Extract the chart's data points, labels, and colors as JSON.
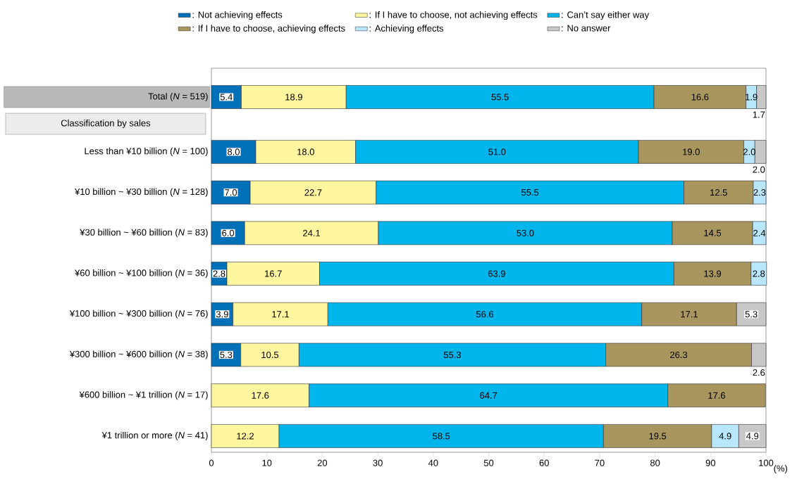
{
  "chart_data": {
    "type": "bar",
    "orientation": "horizontal",
    "stacked": true,
    "categories": [
      "Total (*N* = 519)",
      "Less than ¥10 billion (*N* = 100)",
      "¥10 billion ~ ¥30 billion (*N* = 128)",
      "¥30 billion ~ ¥60 billion (*N* = 83)",
      "¥60 billion ~ ¥100 billion (*N* = 36)",
      "¥100 billion ~ ¥300 billion (*N* = 76)",
      "¥300 billion ~ ¥600 billion (*N* = 38)",
      "¥600 billion ~ ¥1 trillion (*N* = 17)",
      "¥1 trillion or more (*N* = 41)"
    ],
    "series": [
      {
        "name": ": Not achieving effects",
        "color": "#0070b8",
        "values": [
          5.4,
          8.0,
          7.0,
          6.0,
          2.8,
          3.9,
          5.3,
          null,
          null
        ],
        "value_labels": [
          "5.4",
          "8.0",
          "7.0",
          "6.0",
          "2.8",
          "3.9",
          "5.3",
          null,
          null
        ]
      },
      {
        "name": ": If I have to choose, not achieving effects",
        "color": "#fff6a0",
        "values": [
          18.9,
          18.0,
          22.7,
          24.1,
          16.7,
          17.1,
          10.5,
          17.6,
          12.2
        ],
        "value_labels": [
          "18.9",
          "18.0",
          "22.7",
          "24.1",
          "16.7",
          "17.1",
          "10.5",
          "17.6",
          "12.2"
        ]
      },
      {
        "name": ": Can’t say either way",
        "color": "#00b5ec",
        "values": [
          55.5,
          51.0,
          55.5,
          53.0,
          63.9,
          56.6,
          55.3,
          64.7,
          58.5
        ],
        "value_labels": [
          "55.5",
          "51.0",
          "55.5",
          "53.0",
          "63.9",
          "56.6",
          "55.3",
          "64.7",
          "58.5"
        ]
      },
      {
        "name": ": If I have to choose, achieving effects",
        "color": "#a8965e",
        "values": [
          16.6,
          19.0,
          12.5,
          14.5,
          13.9,
          17.1,
          26.3,
          17.6,
          19.5
        ],
        "value_labels": [
          "16.6",
          "19.0",
          "12.5",
          "14.5",
          "13.9",
          "17.1",
          "26.3",
          "17.6",
          "19.5"
        ]
      },
      {
        "name": ": Achieving effects",
        "color": "#b8e6fa",
        "values": [
          1.9,
          2.0,
          2.3,
          2.4,
          2.8,
          null,
          null,
          null,
          4.9
        ],
        "value_labels": [
          "1.9",
          "2.0",
          "2.3",
          "2.4",
          "2.8",
          null,
          null,
          null,
          "4.9"
        ]
      },
      {
        "name": ": No answer",
        "color": "#c8c8c8",
        "values": [
          1.7,
          2.0,
          null,
          null,
          null,
          5.3,
          2.6,
          null,
          4.9
        ],
        "value_labels": [
          "1.7",
          "2.0",
          null,
          null,
          null,
          "5.3",
          "2.6",
          null,
          "4.9"
        ]
      }
    ],
    "xlim": [
      0,
      100
    ],
    "xticks": [
      0,
      10,
      20,
      30,
      40,
      50,
      60,
      70,
      80,
      90,
      100
    ],
    "xlabel": "(%)",
    "annotations": [
      "Classification by sales"
    ],
    "legend": "top",
    "grid": false
  }
}
